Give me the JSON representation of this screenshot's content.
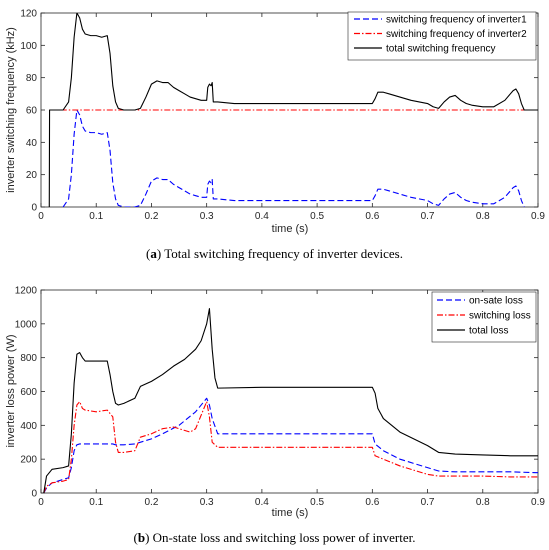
{
  "captions": {
    "a": {
      "tag": "a",
      "text": " Total switching frequency of inverter devices."
    },
    "b": {
      "tag": "b",
      "text": " On-state loss and switching loss power of inverter."
    }
  },
  "chart_data": [
    {
      "type": "line",
      "xlabel": "time (s)",
      "ylabel": "inverter switching frequency (kHz)",
      "xlim": [
        0,
        0.9
      ],
      "ylim": [
        0,
        120
      ],
      "xticks": [
        "0",
        "0.1",
        "0.2",
        "0.3",
        "0.4",
        "0.5",
        "0.6",
        "0.7",
        "0.8",
        "0.9"
      ],
      "yticks": [
        "0",
        "20",
        "40",
        "60",
        "80",
        "100",
        "120"
      ],
      "legend_position": "top-right",
      "series": [
        {
          "name": "switching frequency of inverter1",
          "color": "#0000ff",
          "style": "dashed",
          "x": [
            0.04,
            0.05,
            0.055,
            0.06,
            0.065,
            0.07,
            0.075,
            0.08,
            0.09,
            0.1,
            0.11,
            0.12,
            0.125,
            0.13,
            0.135,
            0.14,
            0.15,
            0.16,
            0.17,
            0.18,
            0.19,
            0.2,
            0.21,
            0.22,
            0.23,
            0.24,
            0.25,
            0.26,
            0.27,
            0.28,
            0.29,
            0.3,
            0.302,
            0.305,
            0.308,
            0.31,
            0.312,
            0.315,
            0.32,
            0.35,
            0.4,
            0.45,
            0.5,
            0.55,
            0.6,
            0.605,
            0.61,
            0.615,
            0.62,
            0.63,
            0.65,
            0.67,
            0.7,
            0.71,
            0.72,
            0.73,
            0.74,
            0.75,
            0.76,
            0.77,
            0.78,
            0.8,
            0.82,
            0.84,
            0.85,
            0.855,
            0.86,
            0.865,
            0.87,
            0.875
          ],
          "y": [
            0,
            5,
            20,
            45,
            60,
            57,
            50,
            47,
            46,
            46,
            45,
            46,
            35,
            15,
            5,
            1,
            0,
            0,
            0,
            1,
            8,
            16,
            18,
            17,
            17,
            14,
            12,
            10,
            8,
            7,
            6,
            6,
            14,
            16,
            15,
            17,
            5,
            5,
            5,
            4,
            4,
            4,
            4,
            4,
            4,
            7,
            11,
            11,
            11,
            10,
            8,
            6,
            4,
            2,
            1,
            5,
            8,
            9,
            6,
            4,
            3,
            2,
            2,
            6,
            10,
            12,
            13,
            10,
            4,
            0
          ]
        },
        {
          "name": "switching frequency of inverter2",
          "color": "#ff0000",
          "style": "dashdot",
          "x": [
            0.015,
            0.9
          ],
          "y": [
            60,
            60
          ]
        },
        {
          "name": "total switching frequency",
          "color": "#000000",
          "style": "solid",
          "x": [
            0.015,
            0.0155,
            0.016,
            0.04,
            0.05,
            0.055,
            0.06,
            0.065,
            0.07,
            0.075,
            0.08,
            0.09,
            0.1,
            0.11,
            0.12,
            0.125,
            0.13,
            0.135,
            0.14,
            0.15,
            0.16,
            0.17,
            0.18,
            0.19,
            0.2,
            0.21,
            0.22,
            0.23,
            0.24,
            0.25,
            0.26,
            0.27,
            0.28,
            0.29,
            0.3,
            0.302,
            0.305,
            0.308,
            0.31,
            0.312,
            0.315,
            0.32,
            0.35,
            0.4,
            0.45,
            0.5,
            0.55,
            0.6,
            0.605,
            0.61,
            0.615,
            0.62,
            0.63,
            0.65,
            0.67,
            0.7,
            0.71,
            0.72,
            0.73,
            0.74,
            0.75,
            0.76,
            0.77,
            0.78,
            0.8,
            0.82,
            0.84,
            0.85,
            0.855,
            0.86,
            0.865,
            0.87,
            0.875,
            0.9
          ],
          "y": [
            0,
            60,
            60,
            60,
            65,
            80,
            105,
            120,
            117,
            110,
            107,
            106,
            106,
            105,
            106,
            95,
            75,
            65,
            61,
            60,
            60,
            60,
            61,
            68,
            76,
            78,
            77,
            77,
            74,
            72,
            70,
            68,
            67,
            66,
            66,
            74,
            76,
            75,
            77,
            65,
            65,
            65,
            64,
            64,
            64,
            64,
            64,
            64,
            67,
            71,
            71,
            71,
            70,
            68,
            66,
            64,
            62,
            61,
            65,
            68,
            69,
            66,
            64,
            63,
            62,
            62,
            66,
            70,
            72,
            73,
            70,
            64,
            60,
            60
          ]
        }
      ]
    },
    {
      "type": "line",
      "xlabel": "time (s)",
      "ylabel": "inverter loss power (W)",
      "xlim": [
        0,
        0.9
      ],
      "ylim": [
        0,
        1200
      ],
      "xticks": [
        "0",
        "0.1",
        "0.2",
        "0.3",
        "0.4",
        "0.5",
        "0.6",
        "0.7",
        "0.8",
        "0.9"
      ],
      "yticks": [
        "0",
        "200",
        "400",
        "600",
        "800",
        "1000",
        "1200"
      ],
      "legend_position": "top-right",
      "series": [
        {
          "name": "on-sate loss",
          "color": "#0000ff",
          "style": "dashed",
          "x": [
            0.005,
            0.01,
            0.02,
            0.04,
            0.05,
            0.055,
            0.06,
            0.065,
            0.07,
            0.1,
            0.13,
            0.135,
            0.15,
            0.17,
            0.2,
            0.22,
            0.25,
            0.28,
            0.3,
            0.305,
            0.31,
            0.32,
            0.4,
            0.5,
            0.6,
            0.605,
            0.62,
            0.65,
            0.7,
            0.72,
            0.75,
            0.8,
            0.85,
            0.9
          ],
          "y": [
            0,
            30,
            60,
            80,
            90,
            150,
            250,
            285,
            290,
            290,
            290,
            285,
            285,
            290,
            320,
            350,
            400,
            480,
            560,
            520,
            440,
            350,
            350,
            350,
            350,
            290,
            250,
            200,
            150,
            130,
            125,
            125,
            125,
            120
          ]
        },
        {
          "name": "switching loss",
          "color": "#ff0000",
          "style": "dashdot",
          "x": [
            0.005,
            0.01,
            0.02,
            0.04,
            0.05,
            0.055,
            0.06,
            0.065,
            0.07,
            0.075,
            0.08,
            0.1,
            0.12,
            0.13,
            0.135,
            0.14,
            0.15,
            0.17,
            0.18,
            0.2,
            0.22,
            0.24,
            0.25,
            0.27,
            0.28,
            0.3,
            0.305,
            0.31,
            0.32,
            0.4,
            0.5,
            0.6,
            0.605,
            0.62,
            0.65,
            0.7,
            0.72,
            0.75,
            0.8,
            0.85,
            0.9
          ],
          "y": [
            0,
            40,
            60,
            70,
            80,
            200,
            400,
            520,
            540,
            500,
            490,
            480,
            490,
            450,
            300,
            240,
            240,
            250,
            330,
            350,
            380,
            390,
            380,
            360,
            380,
            540,
            450,
            300,
            270,
            270,
            270,
            270,
            220,
            200,
            160,
            110,
            100,
            100,
            100,
            95,
            95
          ]
        },
        {
          "name": "total loss",
          "color": "#000000",
          "style": "solid",
          "x": [
            0.005,
            0.01,
            0.02,
            0.04,
            0.05,
            0.055,
            0.06,
            0.065,
            0.07,
            0.075,
            0.08,
            0.1,
            0.12,
            0.125,
            0.13,
            0.135,
            0.14,
            0.15,
            0.17,
            0.18,
            0.2,
            0.22,
            0.24,
            0.26,
            0.28,
            0.29,
            0.3,
            0.305,
            0.31,
            0.315,
            0.32,
            0.4,
            0.5,
            0.6,
            0.605,
            0.61,
            0.62,
            0.65,
            0.7,
            0.72,
            0.75,
            0.8,
            0.85,
            0.9
          ],
          "y": [
            0,
            100,
            140,
            150,
            160,
            350,
            650,
            820,
            830,
            800,
            780,
            780,
            780,
            700,
            600,
            530,
            520,
            530,
            560,
            630,
            660,
            700,
            750,
            790,
            850,
            900,
            1000,
            1090,
            850,
            680,
            620,
            625,
            625,
            625,
            590,
            500,
            440,
            360,
            280,
            240,
            230,
            225,
            220,
            220
          ]
        }
      ]
    }
  ]
}
